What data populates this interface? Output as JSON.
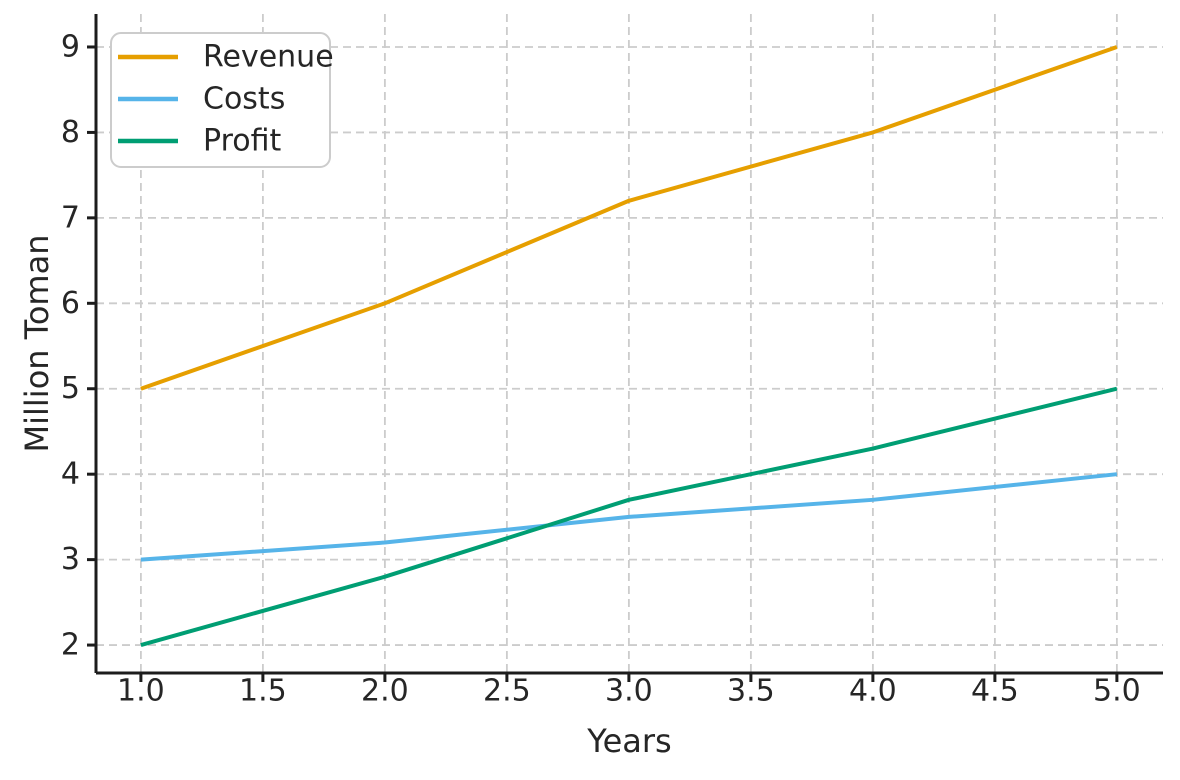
{
  "figure": {
    "background": "#ffffff",
    "text_color": "#262626",
    "spine_color": "#1c1c1c",
    "grid_color": "#cccccc",
    "legend_border_color": "#cccccc",
    "legend_background": "#ffffff"
  },
  "chart_data": {
    "type": "line",
    "title": "",
    "xlabel": "Years",
    "ylabel": "Million Toman",
    "x": [
      1,
      2,
      3,
      4,
      5
    ],
    "series": [
      {
        "name": "Revenue",
        "color": "#E69F00",
        "values": [
          5,
          6,
          7.2,
          8,
          9
        ]
      },
      {
        "name": "Costs",
        "color": "#56B4E9",
        "values": [
          3,
          3.2,
          3.5,
          3.7,
          4
        ]
      },
      {
        "name": "Profit",
        "color": "#009E73",
        "values": [
          2,
          2.8,
          3.7,
          4.3,
          5
        ]
      }
    ],
    "xticks": [
      1.0,
      1.5,
      2.0,
      2.5,
      3.0,
      3.5,
      4.0,
      4.5,
      5.0
    ],
    "xtick_labels": [
      "1.0",
      "1.5",
      "2.0",
      "2.5",
      "3.0",
      "3.5",
      "4.0",
      "4.5",
      "5.0"
    ],
    "yticks": [
      2,
      3,
      4,
      5,
      6,
      7,
      8,
      9
    ],
    "ytick_labels": [
      "2",
      "3",
      "4",
      "5",
      "6",
      "7",
      "8",
      "9"
    ],
    "xlim": [
      0.816,
      5.189
    ],
    "ylim": [
      1.673,
      9.386
    ],
    "grid": true,
    "grid_style": "dashed",
    "legend": {
      "position": "upper-left",
      "labels": [
        "Revenue",
        "Costs",
        "Profit"
      ]
    }
  }
}
